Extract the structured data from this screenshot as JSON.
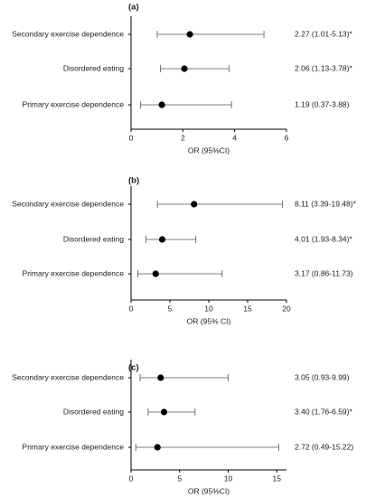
{
  "chart_data": [
    {
      "type": "forest",
      "title": "(a)",
      "x_label": "OR (95%CI)",
      "categories": [
        "Secondary exercise dependence",
        "Disordered eating",
        "Primary exercise dependence"
      ],
      "values": [
        2.27,
        2.06,
        1.19
      ],
      "ci_low": [
        1.01,
        1.13,
        0.37
      ],
      "ci_high": [
        5.13,
        3.78,
        3.88
      ],
      "value_labels": [
        "2.27 (1.01-5.13)*",
        "2.06 (1.13-3.78)*",
        "1.19 (0.37-3.88)"
      ],
      "xlim": [
        0,
        6
      ],
      "xticks": [
        0,
        2,
        4,
        6
      ],
      "color": "#000000"
    },
    {
      "type": "forest",
      "title": "(b)",
      "x_label": "OR (95% CI)",
      "categories": [
        "Secondary exercise dependence",
        "Disordered eating",
        "Primary exercise dependence"
      ],
      "values": [
        8.11,
        4.01,
        3.17
      ],
      "ci_low": [
        3.39,
        1.93,
        0.86
      ],
      "ci_high": [
        19.48,
        8.34,
        11.73
      ],
      "value_labels": [
        "8.11 (3.39-19.48)*",
        "4.01 (1.93-8.34)*",
        "3.17 (0.86-11.73)"
      ],
      "xlim": [
        0,
        20
      ],
      "xticks": [
        0,
        5,
        10,
        15,
        20
      ],
      "color": "#000000"
    },
    {
      "type": "forest",
      "title": "(c)",
      "x_label": "OR (95%CI)",
      "categories": [
        "Secondary exercise dependence",
        "Disordered eating",
        "Primary exercise dependence"
      ],
      "values": [
        3.05,
        3.4,
        2.72
      ],
      "ci_low": [
        0.93,
        1.76,
        0.49
      ],
      "ci_high": [
        9.99,
        6.59,
        15.22
      ],
      "value_labels": [
        "3.05 (0.93-9.99)",
        "3.40 (1.76-6.59)*",
        "2.72 (0.49-15.22)"
      ],
      "xlim": [
        0,
        16
      ],
      "xticks": [
        0,
        5,
        10,
        15
      ],
      "color": "#000000"
    }
  ]
}
